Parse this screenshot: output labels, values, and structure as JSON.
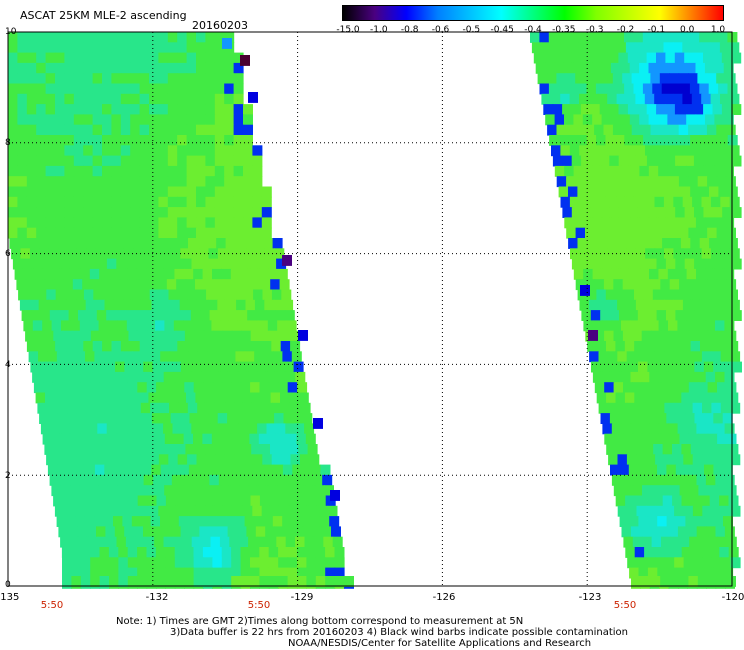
{
  "header": {
    "title": "ASCAT 25KM MLE-2 ascending",
    "date": "20160203"
  },
  "colorbar": {
    "labels": [
      "-15.0",
      "-1.0",
      "-0.8",
      "-0.6",
      "-0.5",
      "-0.45",
      "-0.4",
      "-0.35",
      "-0.3",
      "-0.2",
      "-0.1",
      "0.0",
      "1.0"
    ],
    "colors": [
      "#000000",
      "#4a0080",
      "#0000ff",
      "#0080ff",
      "#00c0ff",
      "#00ffff",
      "#00ff80",
      "#00ff00",
      "#80ff00",
      "#c0ff00",
      "#ffff00",
      "#ff8000",
      "#ff0000"
    ]
  },
  "map": {
    "lon_range": [
      -135,
      -120
    ],
    "lat_range": [
      0,
      10
    ],
    "x_ticks": [
      "-135",
      "-132",
      "-129",
      "-126",
      "-123",
      "-120"
    ],
    "y_ticks": [
      "0",
      "2",
      "4",
      "6",
      "8",
      "10"
    ],
    "swath_times": [
      "5:50",
      "5:50",
      "5:50"
    ],
    "field_colors": [
      "#9af01e",
      "#6cee30",
      "#42ea44",
      "#28e68a",
      "#1ae6c6",
      "#0af0f4",
      "#1296ff",
      "#0030f0",
      "#0000d0"
    ]
  },
  "notes": {
    "line1": "Note: 1) Times are GMT 2)Times along bottom correspond to measurement at 5N",
    "line2": "3)Data buffer is 22 hrs from 20160203 4) Black wind barbs indicate possible contamination",
    "line3": "NOAA/NESDIS/Center for Satellite Applications and Research"
  }
}
